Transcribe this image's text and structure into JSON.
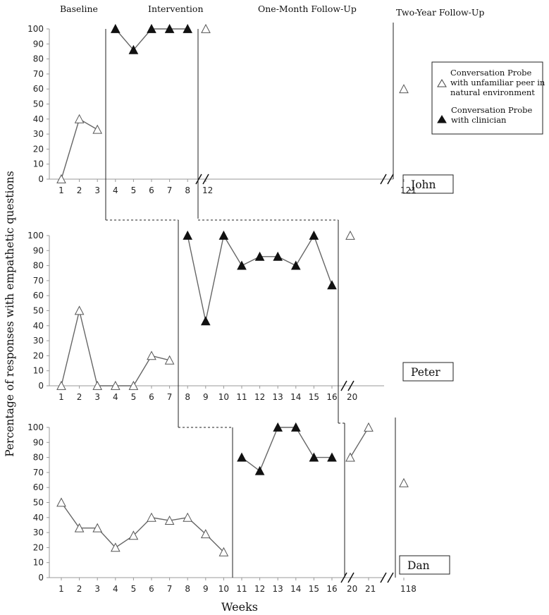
{
  "phase_labels": [
    "Baseline",
    "Intervention",
    "One-Month Follow-Up",
    "Two-Year Follow-Up"
  ],
  "y_axis_label": "Percentage of responses with empathetic questions",
  "x_axis_label": "Weeks",
  "legend": {
    "open_label": [
      "Conversation Probe",
      "with unfamiliar peer in",
      "natural environment"
    ],
    "filled_label": [
      "Conversation Probe",
      "with clinician"
    ]
  },
  "chart_data": {
    "type": "line",
    "ylim": [
      0,
      100
    ],
    "y_ticks": [
      0,
      10,
      20,
      30,
      40,
      50,
      60,
      70,
      80,
      90,
      100
    ],
    "panels": [
      {
        "participant": "John",
        "x_tick_labels": [
          "1",
          "2",
          "3",
          "4",
          "5",
          "6",
          "7",
          "8",
          "12",
          "121"
        ],
        "baseline": {
          "marker": "open",
          "points": [
            {
              "x": 1,
              "y": 0
            },
            {
              "x": 2,
              "y": 40
            },
            {
              "x": 3,
              "y": 33
            }
          ]
        },
        "intervention": {
          "marker": "filled",
          "points": [
            {
              "x": 4,
              "y": 100
            },
            {
              "x": 5,
              "y": 86
            },
            {
              "x": 6,
              "y": 100
            },
            {
              "x": 7,
              "y": 100
            },
            {
              "x": 8,
              "y": 100
            }
          ]
        },
        "follow_up": [
          {
            "x": "12",
            "y": 100,
            "marker": "open"
          },
          {
            "x": "121",
            "y": 60,
            "marker": "open"
          }
        ]
      },
      {
        "participant": "Peter",
        "x_tick_labels": [
          "1",
          "2",
          "3",
          "4",
          "5",
          "6",
          "7",
          "8",
          "9",
          "10",
          "11",
          "12",
          "13",
          "14",
          "15",
          "16",
          "20"
        ],
        "baseline": {
          "marker": "open",
          "points": [
            {
              "x": 1,
              "y": 0
            },
            {
              "x": 2,
              "y": 50
            },
            {
              "x": 3,
              "y": 0
            },
            {
              "x": 4,
              "y": 0
            },
            {
              "x": 5,
              "y": 0
            },
            {
              "x": 6,
              "y": 20
            },
            {
              "x": 7,
              "y": 17
            }
          ]
        },
        "intervention": {
          "marker": "filled",
          "points": [
            {
              "x": 8,
              "y": 100
            },
            {
              "x": 9,
              "y": 43
            },
            {
              "x": 10,
              "y": 100
            },
            {
              "x": 11,
              "y": 80
            },
            {
              "x": 12,
              "y": 86
            },
            {
              "x": 13,
              "y": 86
            },
            {
              "x": 14,
              "y": 80
            },
            {
              "x": 15,
              "y": 100
            },
            {
              "x": 16,
              "y": 67
            }
          ]
        },
        "follow_up": [
          {
            "x": "20",
            "y": 100,
            "marker": "open"
          }
        ]
      },
      {
        "participant": "Dan",
        "x_tick_labels": [
          "1",
          "2",
          "3",
          "4",
          "5",
          "6",
          "7",
          "8",
          "9",
          "10",
          "11",
          "12",
          "13",
          "14",
          "15",
          "16",
          "20",
          "21",
          "118"
        ],
        "baseline": {
          "marker": "open",
          "points": [
            {
              "x": 1,
              "y": 50
            },
            {
              "x": 2,
              "y": 33
            },
            {
              "x": 3,
              "y": 33
            },
            {
              "x": 4,
              "y": 20
            },
            {
              "x": 5,
              "y": 28
            },
            {
              "x": 6,
              "y": 40
            },
            {
              "x": 7,
              "y": 38
            },
            {
              "x": 8,
              "y": 40
            },
            {
              "x": 9,
              "y": 29
            },
            {
              "x": 10,
              "y": 17
            }
          ]
        },
        "intervention": {
          "marker": "filled",
          "points": [
            {
              "x": 11,
              "y": 80
            },
            {
              "x": 12,
              "y": 71
            },
            {
              "x": 13,
              "y": 100
            },
            {
              "x": 14,
              "y": 100
            },
            {
              "x": 15,
              "y": 80
            },
            {
              "x": 16,
              "y": 80
            }
          ]
        },
        "follow_up": [
          {
            "x": "20",
            "y": 80,
            "marker": "open"
          },
          {
            "x": "21",
            "y": 100,
            "marker": "open"
          },
          {
            "x": "118",
            "y": 63,
            "marker": "open"
          }
        ]
      }
    ]
  }
}
